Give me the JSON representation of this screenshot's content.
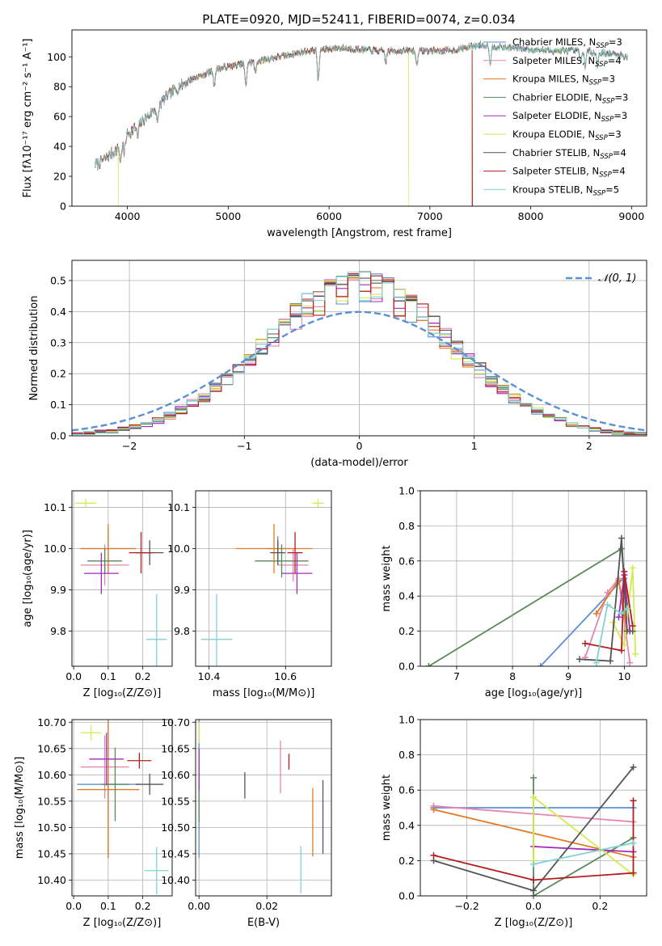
{
  "figure": {
    "title": "PLATE=0920, MJD=52411, FIBERID=0074, z=0.034"
  },
  "models": [
    {
      "name": "Chabrier MILES",
      "nssp": "3",
      "color": "#5b8fd6"
    },
    {
      "name": "Salpeter MILES",
      "nssp": "4",
      "color": "#e586b0"
    },
    {
      "name": "Kroupa MILES",
      "nssp": "3",
      "color": "#e07b23"
    },
    {
      "name": "Chabrier ELODIE",
      "nssp": "3",
      "color": "#5a8a5a"
    },
    {
      "name": "Salpeter ELODIE",
      "nssp": "3",
      "color": "#a12cb8"
    },
    {
      "name": "Kroupa ELODIE",
      "nssp": "3",
      "color": "#d4ea4e"
    },
    {
      "name": "Chabrier STELIB",
      "nssp": "4",
      "color": "#555555"
    },
    {
      "name": "Salpeter STELIB",
      "nssp": "4",
      "color": "#b21e1e"
    },
    {
      "name": "Kroupa STELIB",
      "nssp": "5",
      "color": "#7fd3d3"
    }
  ],
  "chart_data": [
    {
      "id": "spectrum",
      "type": "line",
      "xlabel": "wavelength [Angstrom, rest frame]",
      "ylabel": "Flux [fλ10⁻¹⁷ erg cm⁻² s⁻¹ A⁻¹]",
      "xlim": [
        3450,
        9150
      ],
      "ylim": [
        0,
        118
      ],
      "xticks": [
        4000,
        5000,
        6000,
        7000,
        8000,
        9000
      ],
      "yticks": [
        0,
        20,
        40,
        60,
        80,
        100
      ],
      "grid": false,
      "legend": "upper right",
      "legend_label_format": "{name}, N_SSP={nssp}",
      "continuum_x": [
        3700,
        3900,
        4000,
        4200,
        4400,
        4600,
        4900,
        5200,
        5500,
        5800,
        6100,
        6500,
        6900,
        7200,
        7500,
        7800,
        8200,
        8500,
        8800,
        8950
      ],
      "continuum_y": [
        28,
        38,
        48,
        60,
        74,
        84,
        92,
        96,
        100,
        104,
        106,
        104,
        104,
        104,
        108,
        106,
        104,
        104,
        102,
        100
      ],
      "absorption_features": [
        {
          "x": 3933,
          "depth": 12
        },
        {
          "x": 3968,
          "depth": 10
        },
        {
          "x": 4102,
          "depth": 8
        },
        {
          "x": 4300,
          "depth": 12
        },
        {
          "x": 4861,
          "depth": 10
        },
        {
          "x": 5175,
          "depth": 16
        },
        {
          "x": 5270,
          "depth": 8
        },
        {
          "x": 5893,
          "depth": 22
        },
        {
          "x": 6563,
          "depth": 8
        },
        {
          "x": 6870,
          "depth": 10
        },
        {
          "x": 7600,
          "depth": 12
        },
        {
          "x": 8498,
          "depth": 8
        },
        {
          "x": 8542,
          "depth": 10
        },
        {
          "x": 8662,
          "depth": 9
        }
      ],
      "dropouts": [
        {
          "series": "Kroupa ELODIE",
          "x": 3910
        },
        {
          "series": "Kroupa ELODIE",
          "x": 6790
        },
        {
          "series": "Kroupa MILES",
          "x": 7420
        },
        {
          "series": "Salpeter STELIB",
          "x": 7420
        }
      ]
    },
    {
      "id": "residuals",
      "type": "line",
      "xlabel": "(data-model)/error",
      "ylabel": "Normed distribution",
      "xlim": [
        -2.5,
        2.5
      ],
      "ylim": [
        0,
        0.565
      ],
      "xticks": [
        -2,
        -1,
        0,
        1,
        2
      ],
      "yticks": [
        0.0,
        0.1,
        0.2,
        0.3,
        0.4,
        0.5
      ],
      "grid": true,
      "legend": "upper right",
      "reference_label": "𝒩(0, 1)",
      "reference_color": "#5b8fd6",
      "bin_width": 0.1,
      "bin_range": [
        -2.5,
        2.5
      ],
      "histogram_peak": 0.48,
      "histogram_sigma": 0.82
    },
    {
      "id": "age-vs-Z",
      "type": "scatter",
      "xlabel": "Z [log₁₀(Z/Z⊙)]",
      "ylabel": "age  [log₁₀(age/yr)]",
      "xlim": [
        -0.005,
        0.285
      ],
      "ylim": [
        9.715,
        10.14
      ],
      "xticks": [
        0.0,
        0.1,
        0.2
      ],
      "yticks": [
        9.8,
        9.9,
        10.0,
        10.1
      ],
      "grid": true,
      "points": [
        {
          "model": "Chabrier MILES",
          "x": 0.1,
          "y": 10.0,
          "xerr": 0.08,
          "yerr": 0.05
        },
        {
          "model": "Salpeter MILES",
          "x": 0.09,
          "y": 9.96,
          "xerr": 0.07,
          "yerr": 0.05
        },
        {
          "model": "Kroupa MILES",
          "x": 0.1,
          "y": 10.0,
          "xerr": 0.08,
          "yerr": 0.06
        },
        {
          "model": "Chabrier ELODIE",
          "x": 0.09,
          "y": 9.97,
          "xerr": 0.05,
          "yerr": 0.03
        },
        {
          "model": "Salpeter ELODIE",
          "x": 0.08,
          "y": 9.94,
          "xerr": 0.05,
          "yerr": 0.05
        },
        {
          "model": "Kroupa ELODIE",
          "x": 0.035,
          "y": 10.11,
          "xerr": 0.03,
          "yerr": 0.01
        },
        {
          "model": "Chabrier STELIB",
          "x": 0.22,
          "y": 9.99,
          "xerr": 0.04,
          "yerr": 0.03
        },
        {
          "model": "Salpeter STELIB",
          "x": 0.195,
          "y": 9.99,
          "xerr": 0.035,
          "yerr": 0.05
        },
        {
          "model": "Kroupa STELIB",
          "x": 0.24,
          "y": 9.78,
          "xerr": 0.03,
          "yerr": 0.11
        }
      ]
    },
    {
      "id": "age-vs-mass",
      "type": "scatter",
      "xlabel": "mass [log₁₀(M/M⊙)]",
      "ylabel": "",
      "xlim": [
        10.365,
        10.72
      ],
      "ylim": [
        9.715,
        10.14
      ],
      "xticks": [
        10.4,
        10.6
      ],
      "yticks": [
        9.8,
        9.9,
        10.0,
        10.1
      ],
      "grid": true,
      "points": [
        {
          "model": "Chabrier MILES",
          "x": 10.58,
          "y": 10.0,
          "xerr": 0.03,
          "yerr": 0.03
        },
        {
          "model": "Salpeter MILES",
          "x": 10.62,
          "y": 9.96,
          "xerr": 0.04,
          "yerr": 0.04
        },
        {
          "model": "Kroupa MILES",
          "x": 10.57,
          "y": 10.0,
          "xerr": 0.1,
          "yerr": 0.06
        },
        {
          "model": "Chabrier ELODIE",
          "x": 10.59,
          "y": 9.97,
          "xerr": 0.07,
          "yerr": 0.04
        },
        {
          "model": "Salpeter ELODIE",
          "x": 10.63,
          "y": 9.94,
          "xerr": 0.04,
          "yerr": 0.05
        },
        {
          "model": "Kroupa ELODIE",
          "x": 10.685,
          "y": 10.11,
          "xerr": 0.015,
          "yerr": 0.01
        },
        {
          "model": "Chabrier STELIB",
          "x": 10.58,
          "y": 9.99,
          "xerr": 0.02,
          "yerr": 0.03
        },
        {
          "model": "Salpeter STELIB",
          "x": 10.625,
          "y": 9.99,
          "xerr": 0.02,
          "yerr": 0.05
        },
        {
          "model": "Kroupa STELIB",
          "x": 10.42,
          "y": 9.78,
          "xerr": 0.04,
          "yerr": 0.11
        }
      ]
    },
    {
      "id": "mass-weight-vs-age",
      "type": "line",
      "xlabel": "age  [log₁₀(age/yr)]",
      "ylabel": "mass weight",
      "xlim": [
        6.35,
        10.4
      ],
      "ylim": [
        0,
        1
      ],
      "xticks": [
        7,
        8,
        9,
        10
      ],
      "yticks": [
        0.0,
        0.2,
        0.4,
        0.6,
        0.8,
        1.0
      ],
      "grid": true,
      "series": [
        {
          "model": "Chabrier MILES",
          "x": [
            8.5,
            9.98,
            10.0
          ],
          "y": [
            0.0,
            0.5,
            0.5
          ]
        },
        {
          "model": "Salpeter MILES",
          "x": [
            9.3,
            9.7,
            9.9,
            10.1
          ],
          "y": [
            0.05,
            0.42,
            0.5,
            0.02
          ]
        },
        {
          "model": "Kroupa MILES",
          "x": [
            9.5,
            9.9,
            10.05
          ],
          "y": [
            0.3,
            0.49,
            0.21
          ]
        },
        {
          "model": "Chabrier ELODIE",
          "x": [
            6.5,
            9.95,
            10.05
          ],
          "y": [
            0.0,
            0.67,
            0.33
          ]
        },
        {
          "model": "Salpeter ELODIE",
          "x": [
            9.9,
            10.0,
            10.1
          ],
          "y": [
            0.28,
            0.52,
            0.2
          ]
        },
        {
          "model": "Kroupa ELODIE",
          "x": [
            9.8,
            10.0,
            10.15,
            10.2
          ],
          "y": [
            0.25,
            0.12,
            0.56,
            0.07
          ]
        },
        {
          "model": "Chabrier STELIB",
          "x": [
            9.2,
            9.75,
            9.95,
            10.05,
            10.15
          ],
          "y": [
            0.04,
            0.03,
            0.73,
            0.2,
            0.2
          ]
        },
        {
          "model": "Salpeter STELIB",
          "x": [
            9.3,
            9.95,
            10.0,
            10.15
          ],
          "y": [
            0.13,
            0.09,
            0.54,
            0.23
          ]
        },
        {
          "model": "Kroupa STELIB",
          "x": [
            9.5,
            9.7,
            9.95,
            10.05
          ],
          "y": [
            0.02,
            0.35,
            0.3,
            0.33
          ]
        }
      ]
    },
    {
      "id": "mass-vs-Z",
      "type": "scatter",
      "xlabel": "Z [log₁₀(Z/Z⊙)]",
      "ylabel": "mass [log₁₀(M/M⊙)]",
      "xlim": [
        -0.005,
        0.285
      ],
      "ylim": [
        10.37,
        10.705
      ],
      "xticks": [
        0.0,
        0.1,
        0.2
      ],
      "yticks": [
        10.4,
        10.45,
        10.5,
        10.55,
        10.6,
        10.65,
        10.7
      ],
      "grid": true,
      "points": [
        {
          "model": "Chabrier MILES",
          "x": 0.1,
          "y": 10.582,
          "xerr": 0.09,
          "yerr": 0.14
        },
        {
          "model": "Salpeter MILES",
          "x": 0.09,
          "y": 10.615,
          "xerr": 0.07,
          "yerr": 0.06
        },
        {
          "model": "Kroupa MILES",
          "x": 0.1,
          "y": 10.572,
          "xerr": 0.09,
          "yerr": 0.13
        },
        {
          "model": "Chabrier ELODIE",
          "x": 0.12,
          "y": 10.582,
          "xerr": 0.04,
          "yerr": 0.07
        },
        {
          "model": "Salpeter ELODIE",
          "x": 0.095,
          "y": 10.63,
          "xerr": 0.05,
          "yerr": 0.05
        },
        {
          "model": "Kroupa ELODIE",
          "x": 0.05,
          "y": 10.68,
          "xerr": 0.03,
          "yerr": 0.015
        },
        {
          "model": "Chabrier STELIB",
          "x": 0.22,
          "y": 10.582,
          "xerr": 0.04,
          "yerr": 0.02
        },
        {
          "model": "Salpeter STELIB",
          "x": 0.19,
          "y": 10.627,
          "xerr": 0.035,
          "yerr": 0.015
        },
        {
          "model": "Kroupa STELIB",
          "x": 0.24,
          "y": 10.418,
          "xerr": 0.035,
          "yerr": 0.045
        }
      ]
    },
    {
      "id": "mass-vs-ebv",
      "type": "scatter",
      "xlabel": "E(B-V)",
      "ylabel": "",
      "xlim": [
        -0.001,
        0.039
      ],
      "ylim": [
        10.37,
        10.705
      ],
      "xticks": [
        0.0,
        0.02
      ],
      "yticks": [
        10.4,
        10.45,
        10.5,
        10.55,
        10.6,
        10.65,
        10.7
      ],
      "grid": true,
      "points": [
        {
          "model": "Chabrier MILES",
          "x": 0.0,
          "y": 10.582,
          "yerr": 0.14
        },
        {
          "model": "Salpeter MILES",
          "x": 0.024,
          "y": 10.615,
          "yerr": 0.05
        },
        {
          "model": "Kroupa MILES",
          "x": 0.0335,
          "y": 10.51,
          "yerr": 0.065
        },
        {
          "model": "Chabrier ELODIE",
          "x": 0.0,
          "y": 10.55,
          "yerr": 0.04
        },
        {
          "model": "Salpeter ELODIE",
          "x": 0.0,
          "y": 10.61,
          "yerr": 0.04
        },
        {
          "model": "Kroupa ELODIE",
          "x": 0.0,
          "y": 10.68,
          "yerr": 0.02
        },
        {
          "model": "Chabrier STELIB",
          "x": 0.0135,
          "y": 10.58,
          "yerr": 0.025
        },
        {
          "model": "Salpeter STELIB",
          "x": 0.0265,
          "y": 10.625,
          "yerr": 0.015
        },
        {
          "model": "Kroupa STELIB",
          "x": 0.03,
          "y": 10.42,
          "yerr": 0.045
        },
        {
          "model": "Chabrier STELIB",
          "x": 0.0365,
          "y": 10.52,
          "yerr": 0.07
        }
      ]
    },
    {
      "id": "mass-weight-vs-Z",
      "type": "line",
      "xlabel": "Z [log₁₀(Z/Z⊙)]",
      "ylabel": "mass weight",
      "xlim": [
        -0.34,
        0.34
      ],
      "ylim": [
        0,
        1
      ],
      "xticks": [
        -0.2,
        0.0,
        0.2
      ],
      "yticks": [
        0.0,
        0.2,
        0.4,
        0.6,
        0.8,
        1.0
      ],
      "grid": true,
      "series": [
        {
          "model": "Chabrier MILES",
          "x": [
            -0.3,
            0.3
          ],
          "y": [
            0.5,
            0.5
          ]
        },
        {
          "model": "Salpeter MILES",
          "x": [
            -0.3,
            0.3
          ],
          "y": [
            0.51,
            0.42
          ]
        },
        {
          "model": "Kroupa MILES",
          "x": [
            -0.3,
            0.3
          ],
          "y": [
            0.49,
            0.22
          ]
        },
        {
          "model": "Chabrier ELODIE",
          "x": [
            0.0,
            0.0,
            0.3
          ],
          "y": [
            0.67,
            0.0,
            0.33
          ]
        },
        {
          "model": "Salpeter ELODIE",
          "x": [
            0.0,
            0.3
          ],
          "y": [
            0.28,
            0.25
          ]
        },
        {
          "model": "Kroupa ELODIE",
          "x": [
            0.0,
            0.0,
            0.3
          ],
          "y": [
            0.2,
            0.56,
            0.12
          ]
        },
        {
          "model": "Chabrier STELIB",
          "x": [
            -0.3,
            0.0,
            0.3
          ],
          "y": [
            0.2,
            0.03,
            0.73
          ]
        },
        {
          "model": "Salpeter STELIB",
          "x": [
            -0.3,
            0.0,
            0.3,
            0.3
          ],
          "y": [
            0.23,
            0.09,
            0.13,
            0.54
          ]
        },
        {
          "model": "Kroupa STELIB",
          "x": [
            0.0,
            0.3
          ],
          "y": [
            0.18,
            0.3
          ]
        }
      ]
    }
  ]
}
